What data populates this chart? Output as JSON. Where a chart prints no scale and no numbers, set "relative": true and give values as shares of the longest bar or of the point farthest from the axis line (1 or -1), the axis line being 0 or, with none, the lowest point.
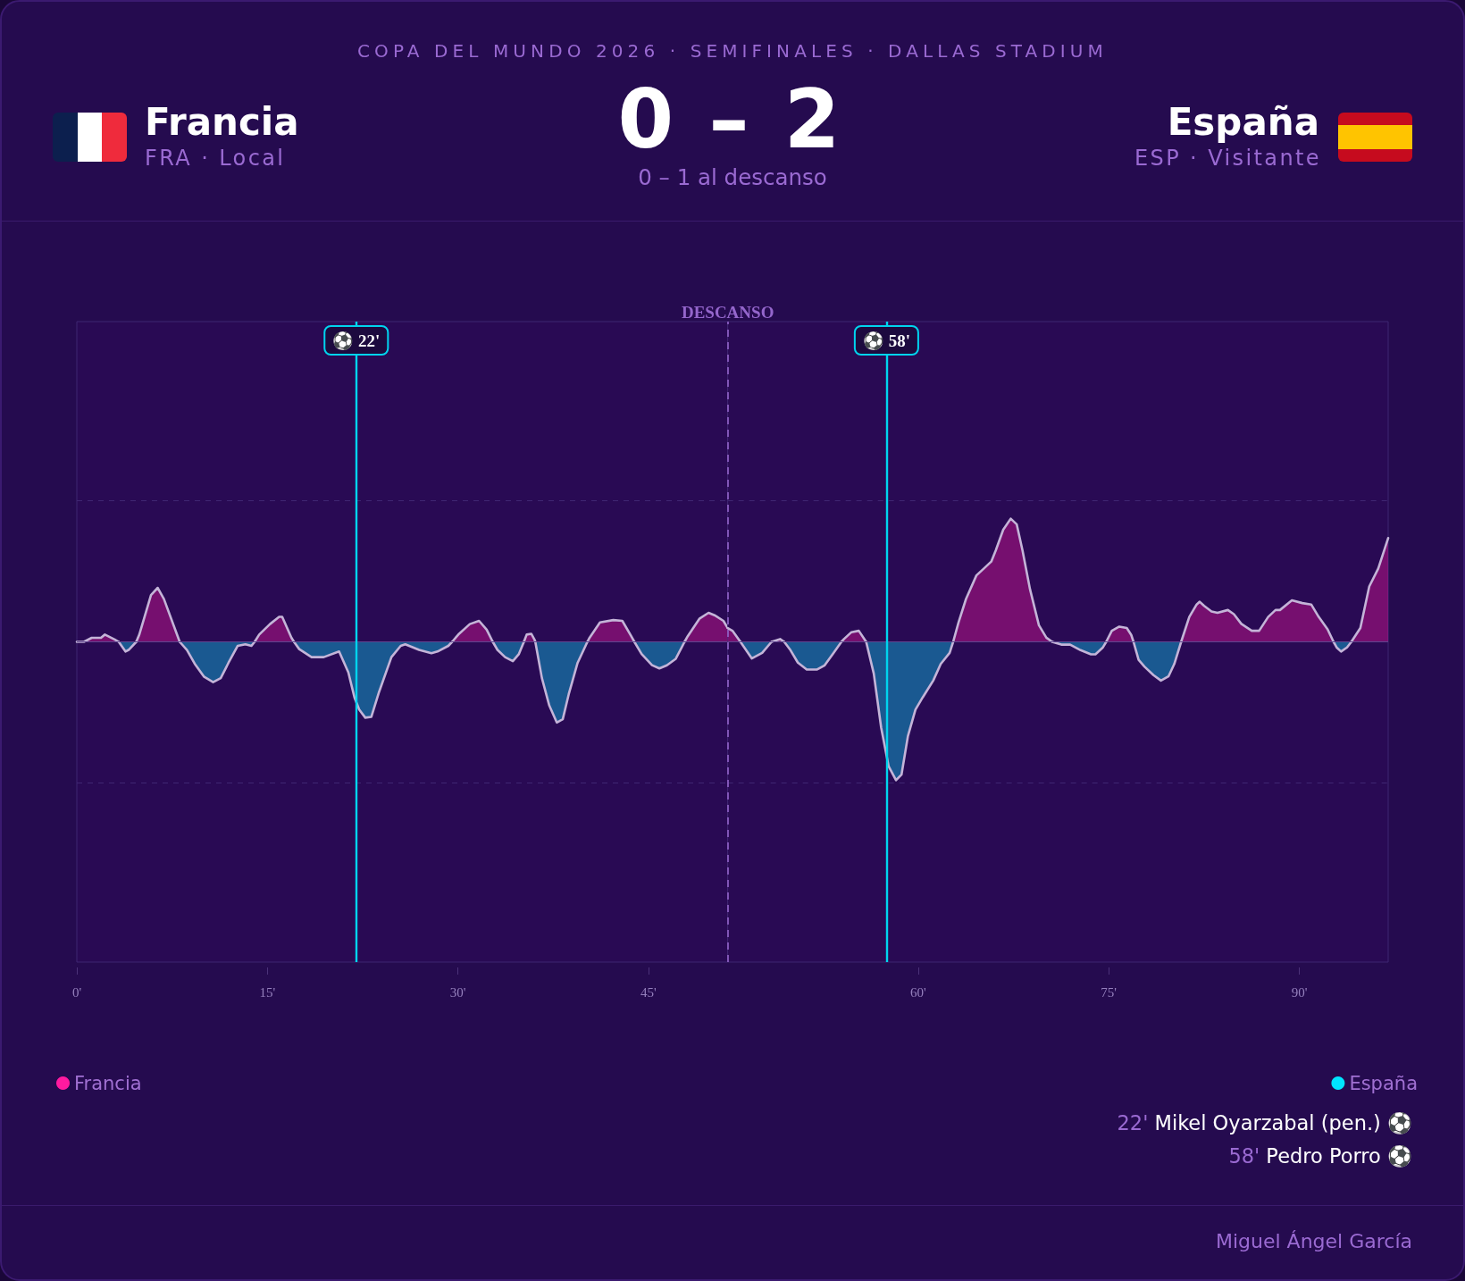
{
  "chart_data": [
    {
      "type": "area",
      "title": "COPA DEL MUNDO 2026 · SEMIFINALES · DALLAS STADIUM",
      "annotations": [
        "Francia",
        "FRA · Local",
        "0 – 2",
        "0 – 1 al descanso",
        "España",
        "ESP · Visitante",
        "22' Mikel Oyarzabal (pen.) ⚽",
        "58' Pedro Porro ⚽",
        "Miguel Ángel García"
      ],
      "relative": true,
      "xlim": [
        0,
        51.25
      ],
      "xticks": [
        {
          "value": 0,
          "label": "0'"
        },
        {
          "value": 15,
          "label": "15'"
        },
        {
          "value": 30,
          "label": "30'"
        },
        {
          "value": 45,
          "label": "45'"
        }
      ],
      "x": [
        0,
        0.56,
        1.17,
        1.9,
        2.21,
        2.98,
        3.3,
        3.83,
        4.08,
        4.68,
        4.92,
        5.84,
        6.37,
        6.86,
        8.1,
        8.67,
        9.28,
        10.0,
        10.73,
        11.33,
        11.94,
        12.66,
        13.27,
        13.75,
        14.0,
        14.36,
        15.21,
        15.93,
        16.17,
        16.9,
        17.1,
        17.51,
        18.48,
        19.44,
        20.65,
        21.38,
        21.86,
        22.23,
        22.71,
        23.19,
        23.8,
        24.77,
        25.5,
        25.86,
        26.95,
        27.92,
        28.4,
        29.25,
        29.55,
        30.1,
        30.94,
        31.67,
        32.27,
        32.75,
        33.12,
        33.72,
        34.33,
        34.81,
        35.2,
        35.42,
        35.78,
        36.03,
        36.1,
        36.62,
        37.2,
        37.79,
        38.26,
        38.73,
        39.43,
        40.2,
        40.37,
        41.19,
        42.24,
        42.95,
        43.65,
        43.9,
        44.47,
        45.29,
        45.87,
        46.46,
        47.16,
        47.85,
        48.1,
        49.04,
        49.74,
        50.21,
        50.91,
        51.25
      ],
      "series": [
        {
          "name": "Francia",
          "color": "#ff1aa0",
          "values": [
            0,
            0,
            0.05,
            0.05,
            0.09,
            0.03,
            0,
            null,
            null,
            0,
            0.09,
            0.58,
            0.67,
            0.53,
            0,
            null,
            null,
            null,
            null,
            null,
            null,
            null,
            null,
            null,
            0,
            0.09,
            0.22,
            0.31,
            0.31,
            0.05,
            0,
            null,
            null,
            null,
            null,
            null,
            null,
            null,
            null,
            null,
            null,
            null,
            null,
            null,
            null,
            null,
            null,
            null,
            0,
            0.1,
            0.22,
            0.26,
            0.15,
            0,
            null,
            null,
            null,
            null,
            0,
            0.09,
            0.1,
            0.03,
            0,
            null,
            null,
            null,
            null,
            null,
            null,
            0,
            0.05,
            0.24,
            0.27,
            0.26,
            0.07,
            0,
            null,
            null,
            null,
            null,
            null,
            0,
            0.07,
            0.29,
            0.36,
            0.33,
            0.26,
            0.17
          ]
        },
        {
          "name": "España",
          "color": "#00e5ff",
          "values": [
            null,
            null,
            null,
            null,
            null,
            null,
            0,
            -0.12,
            -0.1,
            0,
            null,
            null,
            null,
            null,
            0,
            -0.1,
            -0.27,
            -0.43,
            -0.5,
            -0.45,
            -0.26,
            -0.05,
            -0.03,
            -0.05,
            0,
            null,
            null,
            null,
            null,
            null,
            0,
            -0.09,
            -0.19,
            -0.19,
            -0.12,
            -0.38,
            -0.69,
            -0.84,
            -0.94,
            -0.93,
            -0.62,
            -0.19,
            -0.05,
            -0.03,
            -0.1,
            -0.14,
            -0.12,
            -0.05,
            0,
            null,
            null,
            null,
            null,
            0,
            -0.1,
            -0.19,
            -0.24,
            -0.15,
            0,
            null,
            null,
            null,
            0,
            -0.45,
            -0.79,
            -1,
            -0.96,
            -0.65,
            -0.26,
            0,
            null,
            null,
            null,
            null,
            null,
            0,
            -0.15,
            -0.29,
            -0.33,
            -0.29,
            -0.21,
            0,
            null,
            null,
            null,
            null,
            null,
            null
          ]
        }
      ],
      "ref_lines": [
        {
          "axis": "y",
          "value": 0,
          "color": "#5f4690"
        },
        {
          "axis": "y",
          "value": 1.75,
          "line_style": "dashed",
          "color": "#3f2672"
        },
        {
          "axis": "y",
          "value": -1.75,
          "line_style": "dashed",
          "color": "#3f2672"
        },
        {
          "axis": "x",
          "value": 22,
          "label": "⚽ 22'",
          "color": "#00d4ee"
        }
      ],
      "legend": "bottom"
    },
    {
      "type": "area",
      "relative": true,
      "xlim": [
        45,
        97
      ],
      "xticks": [
        {
          "value": 60,
          "label": "60'"
        },
        {
          "value": 75,
          "label": "75'"
        },
        {
          "value": 90,
          "label": "90'"
        }
      ],
      "x": [
        45,
        45.37,
        46.0,
        46.89,
        47.71,
        48.45,
        49.12,
        49.45,
        49.94,
        50.52,
        51.22,
        52.04,
        52.63,
        53.33,
        53.95,
        54.15,
        54.74,
        55.32,
        55.9,
        56.5,
        57.08,
        57.67,
        58.25,
        58.68,
        59.19,
        59.78,
        60.36,
        61.18,
        61.77,
        62.47,
        62.75,
        63.17,
        63.76,
        64.58,
        65.17,
        65.75,
        66.1,
        66.69,
        67.28,
        67.75,
        68.21,
        68.8,
        69.5,
        70.09,
        70.55,
        71.26,
        71.96,
        72.78,
        73.6,
        73.95,
        74.54,
        74.8,
        75.24,
        75.83,
        76.42,
        76.77,
        76.95,
        77.35,
        77.82,
        78.52,
        79.11,
        79.7,
        80.16,
        80.7,
        81.34,
        81.92,
        82.16,
        82.51,
        83.09,
        83.56,
        84.38,
        84.85,
        85.44,
        86.26,
        86.84,
        87.55,
        88.13,
        88.48,
        89.42,
        90.24,
        90.94,
        91.53,
        92.23,
        92.7,
        92.94,
        93.29,
        93.76,
        94.1,
        94.81,
        95.51,
        96.22,
        97.0
      ],
      "series": [
        {
          "color": "#ff1aa0",
          "values": [
            0.1,
            0.08,
            0,
            null,
            null,
            0,
            0.02,
            0,
            null,
            null,
            null,
            null,
            null,
            null,
            0,
            0.02,
            0.07,
            0.08,
            0,
            null,
            null,
            null,
            null,
            null,
            null,
            null,
            null,
            null,
            null,
            null,
            0,
            0.14,
            0.31,
            0.48,
            0.53,
            0.58,
            0.66,
            0.81,
            0.89,
            0.85,
            0.66,
            0.38,
            0.12,
            0.03,
            0,
            null,
            null,
            null,
            null,
            null,
            null,
            0,
            0.08,
            0.11,
            0.1,
            0.05,
            0,
            null,
            null,
            null,
            null,
            null,
            null,
            0,
            0.18,
            0.27,
            0.29,
            0.26,
            0.22,
            0.21,
            0.23,
            0.2,
            0.13,
            0.08,
            0.08,
            0.18,
            0.23,
            0.23,
            0.3,
            0.28,
            0.27,
            0.18,
            0.09,
            0,
            null,
            null,
            null,
            0,
            0.1,
            0.4,
            0.53,
            0.75
          ]
        },
        {
          "color": "#00e5ff",
          "values": [
            null,
            null,
            0,
            -0.12,
            -0.08,
            0,
            null,
            0,
            -0.06,
            -0.15,
            -0.2,
            -0.2,
            -0.17,
            -0.08,
            0,
            null,
            null,
            null,
            0,
            -0.23,
            -0.62,
            -0.9,
            -1,
            -0.96,
            -0.68,
            -0.49,
            -0.4,
            -0.28,
            -0.16,
            -0.08,
            0,
            null,
            null,
            null,
            null,
            null,
            null,
            null,
            null,
            null,
            null,
            null,
            null,
            null,
            0,
            -0.02,
            -0.02,
            -0.06,
            -0.09,
            -0.09,
            -0.04,
            0,
            null,
            null,
            null,
            null,
            0,
            -0.13,
            -0.18,
            -0.24,
            -0.28,
            -0.25,
            -0.16,
            0,
            null,
            null,
            null,
            null,
            null,
            null,
            null,
            null,
            null,
            null,
            null,
            null,
            null,
            null,
            null,
            null,
            null,
            null,
            null,
            0,
            -0.04,
            -0.07,
            -0.04,
            0,
            null,
            null,
            null,
            null
          ]
        }
      ],
      "ref_lines": [
        {
          "axis": "y",
          "value": 0,
          "color": "#5f4690"
        },
        {
          "axis": "y",
          "value": 1.02,
          "line_style": "dashed",
          "color": "#3f2672"
        },
        {
          "axis": "y",
          "value": -1.02,
          "line_style": "dashed",
          "color": "#3f2672"
        },
        {
          "axis": "x",
          "value": 45,
          "label": "DESCANSO",
          "color": "#9466cc",
          "line_style": "dashed"
        },
        {
          "axis": "x",
          "value": 57.5,
          "label": "⚽ 58'",
          "color": "#00d4ee"
        }
      ]
    }
  ]
}
